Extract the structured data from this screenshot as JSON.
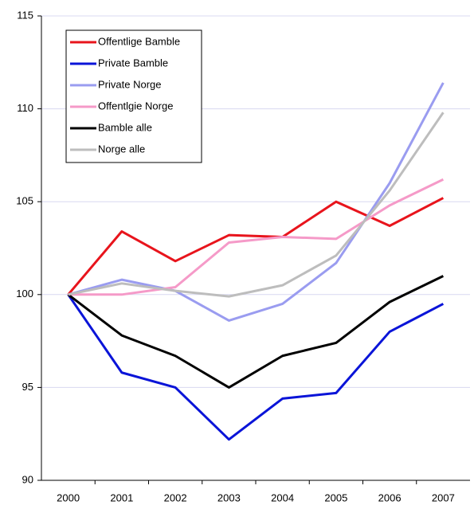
{
  "chart_data": {
    "type": "line",
    "categories": [
      "2000",
      "2001",
      "2002",
      "2003",
      "2004",
      "2005",
      "2006",
      "2007"
    ],
    "series": [
      {
        "name": "Offentlige Bamble",
        "color": "#e8141c",
        "values": [
          100,
          103.4,
          101.8,
          103.2,
          103.1,
          105.0,
          103.7,
          105.2
        ]
      },
      {
        "name": "Private Bamble",
        "color": "#0a14d8",
        "values": [
          100,
          95.8,
          95.0,
          92.2,
          94.4,
          94.7,
          98.0,
          99.5
        ]
      },
      {
        "name": "Private Norge",
        "color": "#9a9cf0",
        "values": [
          100,
          100.8,
          100.2,
          98.6,
          99.5,
          101.7,
          106.0,
          111.4
        ]
      },
      {
        "name": "Offentlgie Norge",
        "color": "#f59ac8",
        "values": [
          100,
          100,
          100.4,
          102.8,
          103.1,
          103.0,
          104.8,
          106.2
        ]
      },
      {
        "name": "Bamble alle",
        "color": "#000000",
        "values": [
          100,
          97.8,
          96.7,
          95.0,
          96.7,
          97.4,
          99.6,
          101.0
        ]
      },
      {
        "name": "Norge alle",
        "color": "#bdbdbd",
        "values": [
          100,
          100.6,
          100.2,
          99.9,
          100.5,
          102.1,
          105.6,
          109.8
        ]
      }
    ],
    "ylim": [
      90,
      115
    ],
    "yticks": [
      90,
      95,
      100,
      105,
      110,
      115
    ],
    "grid": true,
    "legend": "upper left"
  }
}
